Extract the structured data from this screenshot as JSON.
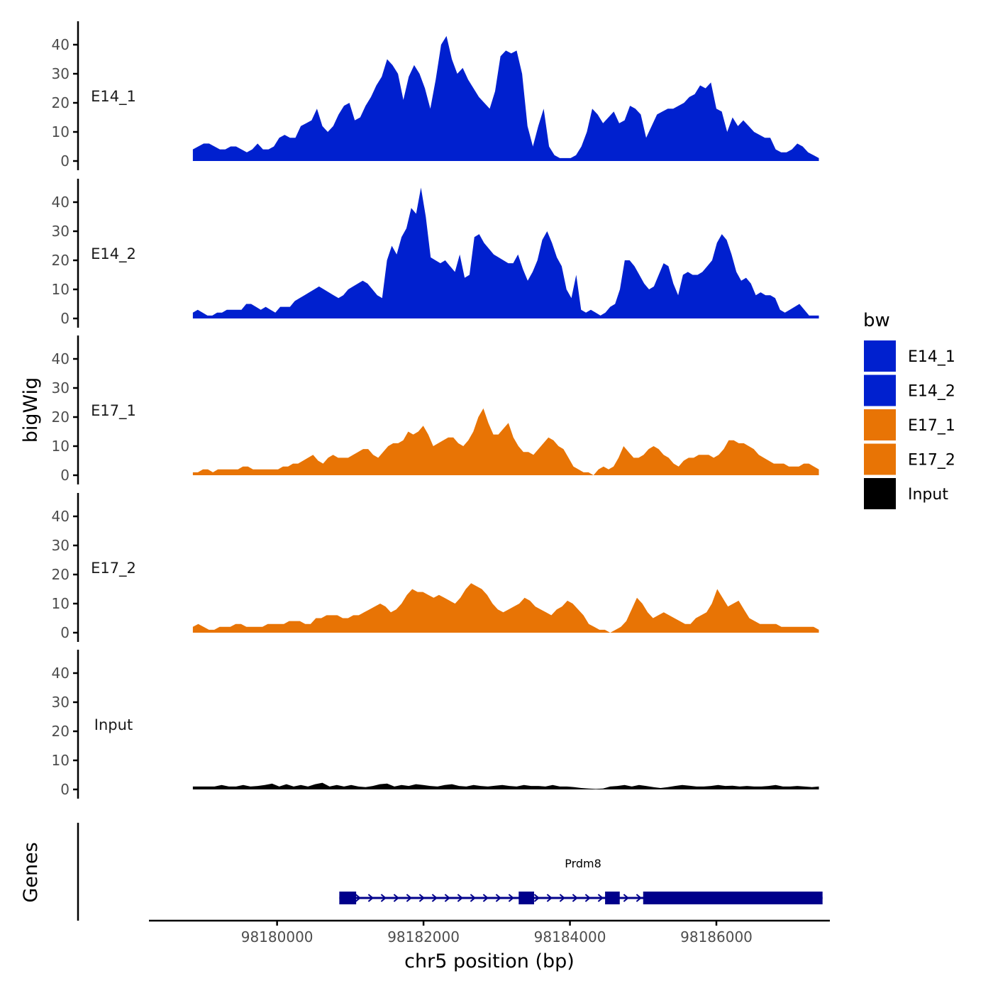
{
  "chart_data": {
    "type": "area",
    "ylabel": "bigWig",
    "xlabel": "chr5 position (bp)",
    "gene_track_label": "Genes",
    "yticks": [
      "0",
      "10",
      "20",
      "30",
      "40"
    ],
    "ylim": [
      0,
      48
    ],
    "xlim": [
      98178250,
      98187550
    ],
    "xticks": [
      {
        "value": 98180000,
        "label": "98180000"
      },
      {
        "value": 98182000,
        "label": "98182000"
      },
      {
        "value": 98184000,
        "label": "98184000"
      },
      {
        "value": 98186000,
        "label": "98186000"
      }
    ],
    "x_start": 98178850,
    "x_end": 98187400,
    "legend": {
      "title": "bw",
      "items": [
        {
          "name": "E14_1",
          "color": "#0020CF"
        },
        {
          "name": "E14_2",
          "color": "#0020CF"
        },
        {
          "name": "E17_1",
          "color": "#E87405"
        },
        {
          "name": "E17_2",
          "color": "#E87405"
        },
        {
          "name": "Input",
          "color": "#000000"
        }
      ]
    },
    "series": [
      {
        "name": "E14_1",
        "color": "#0020CF",
        "values": [
          4,
          5,
          6,
          6,
          5,
          4,
          4,
          5,
          5,
          4,
          3,
          4,
          6,
          4,
          4,
          5,
          8,
          9,
          8,
          8,
          12,
          13,
          14,
          18,
          12,
          10,
          12,
          16,
          19,
          20,
          14,
          15,
          19,
          22,
          26,
          29,
          35,
          33,
          30,
          21,
          29,
          33,
          30,
          25,
          18,
          28,
          40,
          43,
          35,
          30,
          32,
          28,
          25,
          22,
          20,
          18,
          24,
          36,
          38,
          37,
          38,
          30,
          12,
          5,
          12,
          18,
          5,
          2,
          1,
          1,
          1,
          2,
          5,
          10,
          18,
          16,
          13,
          15,
          17,
          13,
          14,
          19,
          18,
          16,
          8,
          12,
          16,
          17,
          18,
          18,
          19,
          20,
          22,
          23,
          26,
          25,
          27,
          18,
          17,
          10,
          15,
          12,
          14,
          12,
          10,
          9,
          8,
          8,
          4,
          3,
          3,
          4,
          6,
          5,
          3,
          2,
          1
        ]
      },
      {
        "name": "E14_2",
        "color": "#0020CF",
        "values": [
          2,
          3,
          2,
          1,
          1,
          2,
          2,
          3,
          3,
          3,
          3,
          5,
          5,
          4,
          3,
          4,
          3,
          2,
          4,
          4,
          4,
          6,
          7,
          8,
          9,
          10,
          11,
          10,
          9,
          8,
          7,
          8,
          10,
          11,
          12,
          13,
          12,
          10,
          8,
          7,
          20,
          25,
          22,
          28,
          31,
          38,
          36,
          45,
          35,
          21,
          20,
          19,
          20,
          18,
          16,
          22,
          14,
          15,
          28,
          29,
          26,
          24,
          22,
          21,
          20,
          19,
          19,
          22,
          17,
          13,
          16,
          20,
          27,
          30,
          26,
          21,
          18,
          10,
          7,
          15,
          3,
          2,
          3,
          2,
          1,
          2,
          4,
          5,
          10,
          20,
          20,
          18,
          15,
          12,
          10,
          11,
          15,
          19,
          18,
          12,
          8,
          15,
          16,
          15,
          15,
          16,
          18,
          20,
          26,
          29,
          27,
          22,
          16,
          13,
          14,
          12,
          8,
          9,
          8,
          8,
          7,
          3,
          2,
          3,
          4,
          5,
          3,
          1,
          1,
          1
        ]
      },
      {
        "name": "E17_1",
        "color": "#E87405",
        "values": [
          1,
          1,
          2,
          2,
          1,
          2,
          2,
          2,
          2,
          2,
          3,
          3,
          2,
          2,
          2,
          2,
          2,
          2,
          3,
          3,
          4,
          4,
          5,
          6,
          7,
          5,
          4,
          6,
          7,
          6,
          6,
          6,
          7,
          8,
          9,
          9,
          7,
          6,
          8,
          10,
          11,
          11,
          12,
          15,
          14,
          15,
          17,
          14,
          10,
          11,
          12,
          13,
          13,
          11,
          10,
          12,
          15,
          20,
          23,
          18,
          14,
          14,
          16,
          18,
          13,
          10,
          8,
          8,
          7,
          9,
          11,
          13,
          12,
          10,
          9,
          6,
          3,
          2,
          1,
          1,
          0,
          2,
          3,
          2,
          3,
          6,
          10,
          8,
          6,
          6,
          7,
          9,
          10,
          9,
          7,
          6,
          4,
          3,
          5,
          6,
          6,
          7,
          7,
          7,
          6,
          7,
          9,
          12,
          12,
          11,
          11,
          10,
          9,
          7,
          6,
          5,
          4,
          4,
          4,
          3,
          3,
          3,
          4,
          4,
          3,
          2
        ]
      },
      {
        "name": "E17_2",
        "color": "#E87405",
        "values": [
          2,
          3,
          2,
          1,
          1,
          2,
          2,
          2,
          3,
          3,
          2,
          2,
          2,
          2,
          3,
          3,
          3,
          3,
          4,
          4,
          4,
          3,
          3,
          5,
          5,
          6,
          6,
          6,
          5,
          5,
          6,
          6,
          7,
          8,
          9,
          10,
          9,
          7,
          8,
          10,
          13,
          15,
          14,
          14,
          13,
          12,
          13,
          12,
          11,
          10,
          12,
          15,
          17,
          16,
          15,
          13,
          10,
          8,
          7,
          8,
          9,
          10,
          12,
          11,
          9,
          8,
          7,
          6,
          8,
          9,
          11,
          10,
          8,
          6,
          3,
          2,
          1,
          1,
          0,
          1,
          2,
          4,
          8,
          12,
          10,
          7,
          5,
          6,
          7,
          6,
          5,
          4,
          3,
          3,
          5,
          6,
          7,
          10,
          15,
          12,
          9,
          10,
          11,
          8,
          5,
          4,
          3,
          3,
          3,
          3,
          2,
          2,
          2,
          2,
          2,
          2,
          2,
          1
        ]
      },
      {
        "name": "Input",
        "color": "#000000",
        "values": [
          1,
          1,
          1,
          1,
          1.5,
          1,
          1,
          1.5,
          1,
          1.2,
          1.5,
          2,
          1,
          1.8,
          1,
          1.5,
          1,
          1.8,
          2.3,
          1,
          1.5,
          1,
          1.5,
          1,
          0.8,
          1.2,
          1.8,
          2,
          1,
          1.5,
          1.2,
          1.8,
          1.5,
          1.2,
          1,
          1.5,
          1.8,
          1.2,
          1,
          1.5,
          1.2,
          1,
          1.3,
          1.5,
          1.2,
          1,
          1.5,
          1.2,
          1.2,
          1,
          1.5,
          1,
          1,
          0.8,
          0.5,
          0.3,
          0.2,
          0.3,
          1,
          1.2,
          1.5,
          1,
          1.5,
          1.2,
          0.8,
          0.5,
          0.8,
          1.2,
          1.5,
          1.3,
          1,
          1,
          1.2,
          1.5,
          1.2,
          1.3,
          1,
          1.2,
          1,
          1,
          1.2,
          1.5,
          1,
          1,
          1.2,
          1,
          0.8,
          1
        ]
      }
    ],
    "genes": [
      {
        "name": "Prdm8",
        "strand": "+",
        "start": 98180850,
        "end": 98187450,
        "exons": [
          [
            98180850,
            98181080
          ],
          [
            98183300,
            98183510
          ],
          [
            98184480,
            98184680
          ],
          [
            98185000,
            98187450
          ]
        ]
      }
    ]
  }
}
